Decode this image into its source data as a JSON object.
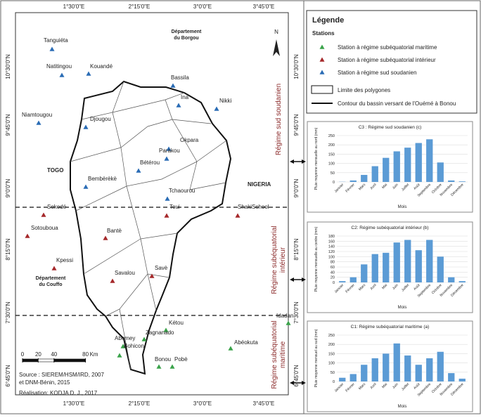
{
  "map": {
    "lon_labels": [
      "1°30'0\"E",
      "2°15'0\"E",
      "3°0'0\"E",
      "3°45'0\"E"
    ],
    "lat_labels": [
      "10°30'0\"N",
      "9°45'0\"N",
      "9°0'0\"N",
      "8°15'0\"N",
      "7°30'0\"N",
      "6°45'0\"N"
    ],
    "north": "N",
    "places": [
      "TOGO",
      "NIGERIA"
    ],
    "departments": [
      [
        "Département",
        "du Borgou"
      ],
      [
        "Département",
        "du Couffo"
      ]
    ],
    "regimes": [
      [
        "Régime sud soudanien"
      ],
      [
        "Régime subéquatorial",
        "intérieur"
      ],
      [
        "Régime subéquatorial",
        "maritime"
      ]
    ],
    "station_groups": [
      {
        "label": "Station à régime subéquatorial maritime",
        "color": "#3aa34a",
        "stations": [
          "Idadan",
          "Kétou",
          "Zagnanado",
          "Abomey",
          "Bohicon",
          "Abéokuta",
          "Bonou",
          "Pobè"
        ]
      },
      {
        "label": "Station à régime subéquatorial intérieur",
        "color": "#a5282a",
        "stations": [
          "Sokodé",
          "Toui",
          "ShakiSchool",
          "Sotouboua",
          "Bantè",
          "Kpessi",
          "Savalou",
          "Savè"
        ]
      },
      {
        "label": "Station à régime sud soudanien",
        "color": "#2a6cb5",
        "stations": [
          "Tanguiéta",
          "Natitingou",
          "Kouandé",
          "Bassila",
          "Ina",
          "Nikki",
          "Niamtougou",
          "Djougou",
          "Okpara",
          "Parakou",
          "Bétérou",
          "Bembèrèkè",
          "Tchaourou"
        ]
      }
    ],
    "scale_bar": {
      "ticks": [
        0,
        20,
        40,
        80
      ],
      "unit": "Km"
    },
    "source": [
      "Source : SIEREM/HSM/IRD, 2007",
      "et DNM-Bénin, 2015",
      "Réalisation: KODJA D. J., 2017"
    ]
  },
  "legend": {
    "title": "Légende",
    "subtitle": "Stations",
    "polygons": "Limite des polygones",
    "basin": "Contour du bassin versant de l'Ouémé à Bonou"
  },
  "chart_data": [
    {
      "type": "bar",
      "title": "C3 : Régime sud soudanien (c)",
      "y_label": "Pluie moyenne mensuelle au nord (mm)",
      "x_label": "Mois",
      "color": "#5b9bd5",
      "categories": [
        "Janvier",
        "Février",
        "Mars",
        "Avril",
        "Mai",
        "Juin",
        "Juillet",
        "Août",
        "Septembre",
        "Octobre",
        "Novembre",
        "Décembre"
      ],
      "values": [
        1,
        8,
        38,
        85,
        130,
        165,
        185,
        210,
        230,
        105,
        8,
        3
      ],
      "ylim": [
        0,
        250
      ],
      "yticks": [
        0,
        50,
        100,
        150,
        200,
        250
      ]
    },
    {
      "type": "bar",
      "title": "C2: Régime subéquatorial intérieur (b)",
      "y_label": "Pluie moyenne mensuelle au centre (mm)",
      "x_label": "Mois",
      "color": "#5b9bd5",
      "categories": [
        "Janvier",
        "Février",
        "Mars",
        "Avril",
        "Mai",
        "Juin",
        "Juillet",
        "Août",
        "Septembre",
        "Octobre",
        "Novembre",
        "Décembre"
      ],
      "values": [
        5,
        20,
        70,
        110,
        115,
        155,
        165,
        125,
        165,
        100,
        20,
        5
      ],
      "ylim": [
        0,
        180
      ],
      "yticks": [
        0,
        20,
        40,
        60,
        80,
        100,
        120,
        140,
        160,
        180
      ]
    },
    {
      "type": "bar",
      "title": "C1: Régime subéquatorial maritime (a)",
      "y_label": "Pluie moyenne mensuel au sud (mm)",
      "x_label": "Mois",
      "color": "#5b9bd5",
      "categories": [
        "Janvier",
        "Février",
        "Mars",
        "Avril",
        "Mai",
        "Juin",
        "Juillet",
        "Août",
        "Septembre",
        "Octobre",
        "Novembre",
        "Décembre"
      ],
      "values": [
        20,
        40,
        90,
        125,
        150,
        205,
        140,
        90,
        125,
        160,
        45,
        15
      ],
      "ylim": [
        0,
        250
      ],
      "yticks": [
        0,
        50,
        100,
        150,
        200,
        250
      ]
    }
  ]
}
